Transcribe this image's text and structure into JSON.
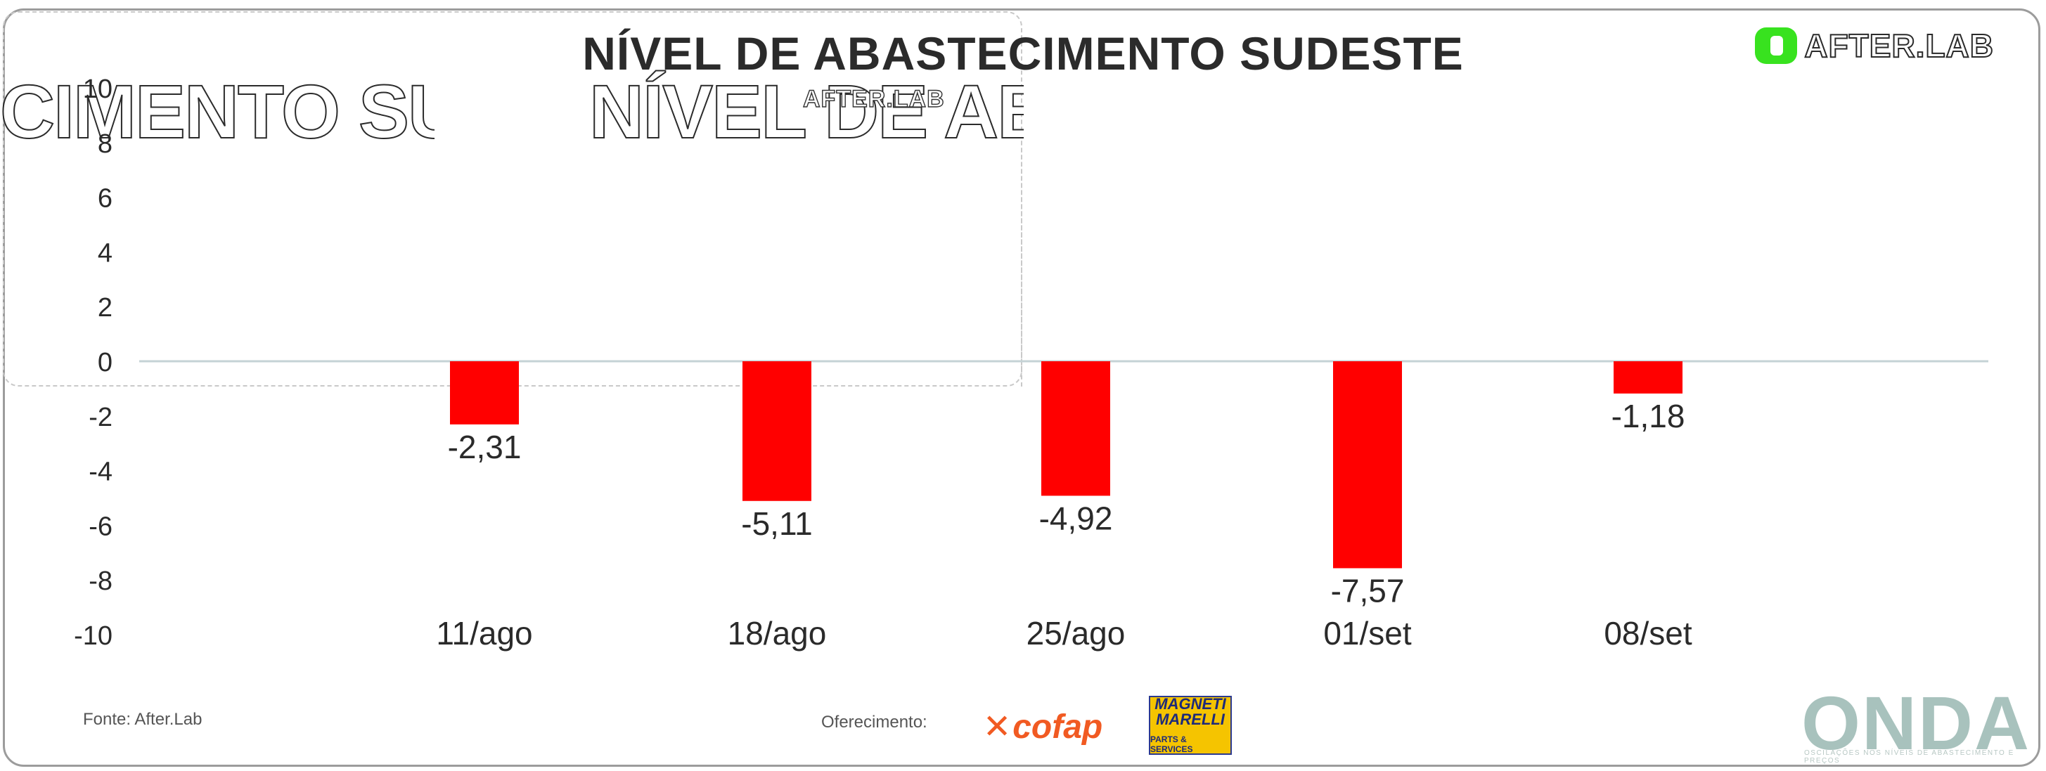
{
  "header": {
    "title": "NÍVEL DE ABASTECIMENTO SUDESTE",
    "ghost_title_1": "CIMENTO SUDESTE",
    "ghost_title_2": "NÍVEL DE ABASTEC",
    "brand": "AFTER.LAB",
    "ghost_brand": "AFTER.LAB"
  },
  "footer": {
    "source": "Fonte: After.Lab",
    "sponsor_label": "Oferecimento:",
    "sponsors": [
      "cofap",
      "MAGNETI MARELLI",
      "PARTS & SERVICES"
    ],
    "onda_logo": "ONDA",
    "onda_tagline": "OSCILAÇÕES NOS NÍVEIS DE ABASTECIMENTO E PREÇOS"
  },
  "colors": {
    "bar": "#ff0000",
    "axis": "#c5d3d6",
    "brand_green": "#38e21f",
    "cofap": "#f15a22",
    "magneti_yellow": "#f5c400",
    "onda": "#a8c2bd"
  },
  "chart_data": {
    "type": "bar",
    "title": "NÍVEL DE ABASTECIMENTO SUDESTE",
    "categories": [
      "11/ago",
      "18/ago",
      "25/ago",
      "01/set",
      "08/set"
    ],
    "values": [
      -2.31,
      -5.11,
      -4.92,
      -7.57,
      -1.18
    ],
    "value_labels": [
      "-2,31",
      "-5,11",
      "-4,92",
      "-7,57",
      "-1,18"
    ],
    "ylim": [
      -10,
      10
    ],
    "yticks": [
      -10,
      -8,
      -6,
      -4,
      -2,
      0,
      2,
      4,
      6,
      8,
      10
    ],
    "ytick_labels": [
      "-10",
      "-8",
      "-6",
      "-4",
      "-2",
      "0",
      "2",
      "4",
      "6",
      "8",
      "10"
    ],
    "grid": false,
    "legend": "none"
  }
}
